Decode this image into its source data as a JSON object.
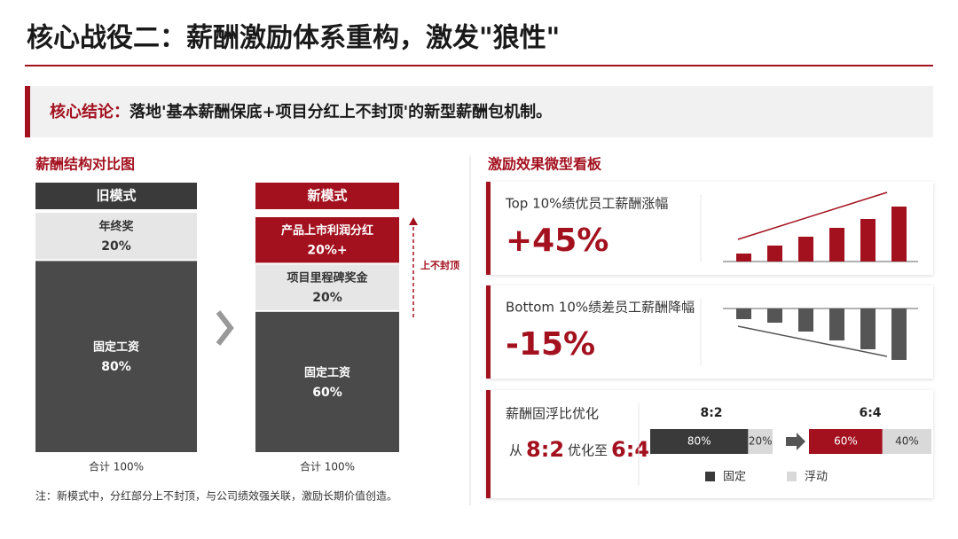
{
  "header": {
    "title": "核心战役二：薪酬激励体系重构，激发\"狼性\""
  },
  "conclusion": {
    "label": "核心结论：",
    "text": "落地'基本薪酬保底+项目分红上不封顶'的新型薪酬包机制。"
  },
  "left": {
    "title": "薪酬结构对比图",
    "old": {
      "name": "旧模式",
      "segments": [
        {
          "name": "年终奖",
          "value": 20,
          "label": "20%"
        },
        {
          "name": "固定工资",
          "value": 80,
          "label": "80%"
        }
      ],
      "total": "合计 100%"
    },
    "new": {
      "name": "新模式",
      "segments": [
        {
          "name": "产品上市利润分红",
          "value": 20,
          "label": "20%+"
        },
        {
          "name": "项目里程碑奖金",
          "value": 20,
          "label": "20%"
        },
        {
          "name": "固定工资",
          "value": 60,
          "label": "60%"
        }
      ],
      "total": "合计 100%"
    },
    "arrow_label": "上不封顶",
    "note": "注：新模式中，分红部分上不封顶，与公司绩效强关联，激励长期价值创造。"
  },
  "right": {
    "title": "激励效果微型看板",
    "cards": [
      {
        "title": "Top 10%绩优员工薪酬涨幅",
        "value": "+45%",
        "bars": [
          9,
          18,
          28,
          38,
          48,
          62
        ]
      },
      {
        "title": "Bottom 10%绩差员工薪酬降幅",
        "value": "-15%",
        "bars": [
          12,
          16,
          26,
          36,
          46,
          58
        ]
      }
    ],
    "ratio": {
      "title": "薪酬固浮比优化",
      "prefix": "从",
      "from": "8:2",
      "mid": "优化至",
      "to": "6:4",
      "groups": [
        {
          "label": "8:2",
          "segments": [
            {
              "value": 80,
              "label": "80%"
            },
            {
              "value": 20,
              "label": "20%"
            }
          ]
        },
        {
          "label": "6:4",
          "segments": [
            {
              "value": 60,
              "label": "60%"
            },
            {
              "value": 40,
              "label": "40%"
            }
          ]
        }
      ],
      "legend": [
        "固定",
        "浮动"
      ]
    }
  }
}
